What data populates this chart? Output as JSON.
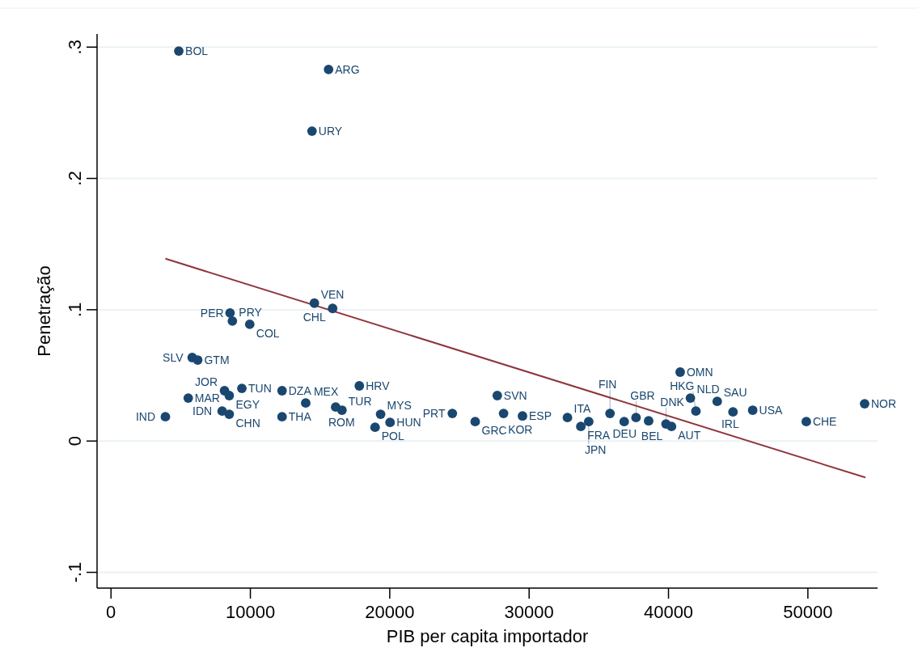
{
  "chart_data": {
    "type": "scatter",
    "xlabel": "PIB per capita importador",
    "ylabel": "Penetração",
    "xlim": [
      -1000,
      55000
    ],
    "ylim": [
      -0.112,
      0.31
    ],
    "xticks": [
      0,
      10000,
      20000,
      30000,
      40000,
      50000
    ],
    "yticks": [
      {
        "value": -0.1,
        "label": "-.1"
      },
      {
        "value": 0,
        "label": "0"
      },
      {
        "value": 0.1,
        "label": ".1"
      },
      {
        "value": 0.2,
        "label": ".2"
      },
      {
        "value": 0.3,
        "label": ".3"
      }
    ],
    "grid": "y",
    "series": [
      {
        "marker": "circle",
        "color": "#1a476f",
        "x": [
          4864,
          15611,
          14423,
          14593,
          15900,
          8541,
          8710,
          9955,
          5826,
          6222,
          5543,
          8145,
          8484,
          9389,
          7975,
          8484,
          12274,
          3903,
          12274,
          17817,
          13971,
          16120,
          16572,
          19344,
          18948,
          20023,
          24491,
          27715,
          26131,
          28167,
          29525,
          32750,
          33710,
          35803,
          34276,
          36822,
          37670,
          38575,
          39819,
          40215,
          40837,
          41572,
          41968,
          43495,
          44627,
          46041,
          49887,
          54072
        ],
        "values": [
          0.297,
          0.283,
          0.236,
          0.105,
          0.101,
          0.0975,
          0.0914,
          0.0889,
          0.0636,
          0.0617,
          0.0327,
          0.0383,
          0.0346,
          0.0401,
          0.0228,
          0.0204,
          0.0383,
          0.0185,
          0.0185,
          0.042,
          0.029,
          0.0259,
          0.0235,
          0.0204,
          0.0105,
          0.0142,
          0.021,
          0.0346,
          0.0148,
          0.021,
          0.0191,
          0.0179,
          0.0111,
          0.021,
          0.0148,
          0.0148,
          0.0179,
          0.0154,
          0.013,
          0.0111,
          0.0525,
          0.0327,
          0.0228,
          0.0302,
          0.0222,
          0.0235,
          0.0148,
          0.0284
        ],
        "value_labels": [
          "BOL",
          "ARG",
          "URY",
          "VEN",
          "CHL",
          "PER",
          "PRY",
          "COL",
          "SLV",
          "GTM",
          "MAR",
          "JOR",
          "EGY",
          "TUN",
          "IDN",
          "CHN",
          "DZA",
          "IND",
          "THA",
          "HRV",
          "MEX",
          "ROM",
          "TUR",
          "MYS",
          "POL",
          "HUN",
          "PRT",
          "SVN",
          "GRC",
          "KOR",
          "ESP",
          "ITA",
          "FRA",
          "FIN",
          "JPN",
          "DEU",
          "GBR",
          "BEL",
          "DNK",
          "AUT",
          "OMN",
          "NLD",
          "HKG",
          "SAU",
          "IRL",
          "USA",
          "CHE",
          "NOR"
        ]
      },
      {
        "type": "line",
        "color": "#90353b",
        "x": [
          3903,
          54130
        ],
        "values": [
          0.1389,
          -0.0278
        ]
      }
    ]
  }
}
